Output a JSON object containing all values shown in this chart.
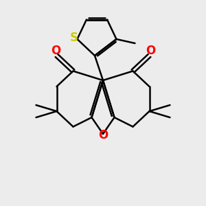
{
  "background_color": "#ececec",
  "bond_color": "#000000",
  "o_color": "#ff0000",
  "s_color": "#cccc00",
  "line_width": 1.8,
  "figsize": [
    3.0,
    3.0
  ],
  "dpi": 100,
  "xlim": [
    0,
    10
  ],
  "ylim": [
    0,
    10
  ]
}
